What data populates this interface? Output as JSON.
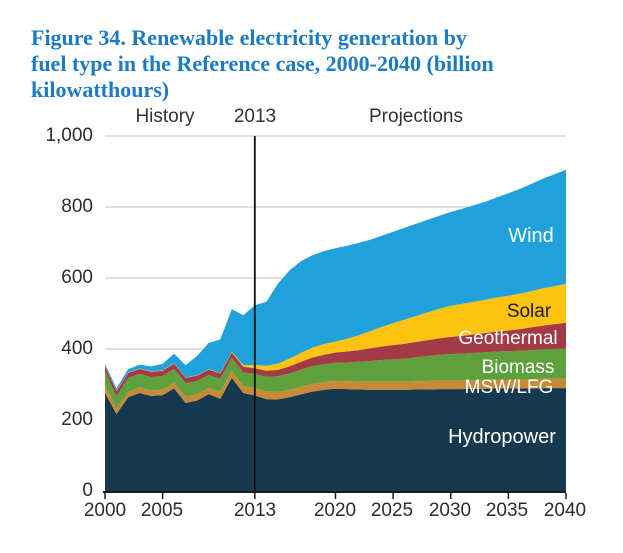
{
  "title": {
    "text": "Figure 34. Renewable electricity generation by fuel type in the Reference case, 2000-2040 (billion kilowatthours)",
    "lines": [
      "Figure 34. Renewable electricity generation by",
      "fuel type in the Reference case, 2000-2040 (billion",
      "kilowatthours)"
    ],
    "color": "#1c7bc2"
  },
  "annotations": {
    "history": "History",
    "divider_year": "2013",
    "projections": "Projections"
  },
  "axes": {
    "y_ticks": [
      "1,000",
      "800",
      "600",
      "400",
      "200",
      "0"
    ],
    "x_ticks": [
      "2000",
      "2005",
      "2013",
      "2020",
      "2025",
      "2030",
      "2035",
      "2040"
    ]
  },
  "colors": {
    "gridline": "#c2c2c2",
    "axis": "#1a1a1a",
    "divider_line": "#111111"
  },
  "chart_data": {
    "type": "area",
    "stacked": true,
    "title": "Figure 34. Renewable electricity generation by fuel type in the Reference case, 2000-2040 (billion kilowatthours)",
    "xlabel": "",
    "ylabel": "billion kilowatthours",
    "ylim": [
      0,
      1000
    ],
    "y_tick_values": [
      0,
      200,
      400,
      600,
      800,
      1000
    ],
    "x_tick_values": [
      2000,
      2005,
      2013,
      2020,
      2025,
      2030,
      2035,
      2040
    ],
    "divider_year": 2013,
    "grid": false,
    "legend_position": "labels-inside-areas",
    "x_years": [
      2000,
      2001,
      2002,
      2003,
      2004,
      2005,
      2006,
      2007,
      2008,
      2009,
      2010,
      2011,
      2012,
      2013,
      2014,
      2015,
      2016,
      2017,
      2018,
      2019,
      2020,
      2021,
      2022,
      2023,
      2024,
      2025,
      2026,
      2027,
      2028,
      2029,
      2030,
      2031,
      2032,
      2033,
      2034,
      2035,
      2036,
      2037,
      2038,
      2039,
      2040
    ],
    "series": [
      {
        "name": "Hydropower",
        "color": "#16394f",
        "values": [
          276,
          217,
          264,
          276,
          268,
          270,
          289,
          248,
          255,
          273,
          260,
          319,
          276,
          269,
          259,
          258,
          264,
          272,
          280,
          285,
          288,
          287,
          286,
          285,
          285,
          285,
          285,
          286,
          286,
          287,
          287,
          287,
          288,
          288,
          289,
          289,
          289,
          289,
          290,
          290,
          290
        ]
      },
      {
        "name": "MSW/LFG",
        "color": "#c98a37",
        "values": [
          23,
          15,
          15,
          16,
          15,
          15,
          16,
          17,
          18,
          18,
          19,
          19,
          20,
          21,
          21,
          21,
          21,
          22,
          22,
          22,
          22,
          22,
          22,
          23,
          23,
          23,
          23,
          23,
          24,
          24,
          24,
          24,
          24,
          25,
          25,
          25,
          25,
          26,
          26,
          26,
          26
        ]
      },
      {
        "name": "Biomass",
        "color": "#5ea03c",
        "values": [
          38,
          35,
          39,
          38,
          38,
          39,
          39,
          39,
          37,
          36,
          37,
          37,
          38,
          40,
          42,
          44,
          46,
          48,
          50,
          50,
          51,
          53,
          56,
          58,
          61,
          63,
          65,
          68,
          70,
          73,
          75,
          76,
          77,
          78,
          79,
          80,
          81,
          82,
          83,
          84,
          85
        ]
      },
      {
        "name": "Geothermal",
        "color": "#a23b46",
        "values": [
          14,
          14,
          14,
          14,
          15,
          15,
          15,
          15,
          15,
          15,
          15,
          15,
          16,
          16,
          17,
          18,
          20,
          22,
          24,
          27,
          29,
          31,
          33,
          36,
          38,
          40,
          42,
          43,
          45,
          46,
          48,
          50,
          52,
          54,
          56,
          58,
          61,
          64,
          67,
          70,
          73
        ]
      },
      {
        "name": "Solar",
        "color": "#fec211",
        "values": [
          1,
          1,
          1,
          1,
          1,
          1,
          1,
          1,
          1,
          1,
          1,
          2,
          4,
          9,
          14,
          18,
          22,
          25,
          28,
          30,
          31,
          36,
          42,
          48,
          55,
          62,
          68,
          73,
          78,
          83,
          88,
          90,
          92,
          94,
          96,
          98,
          100,
          102,
          105,
          107,
          110
        ]
      },
      {
        "name": "Wind",
        "color": "#21a1db",
        "values": [
          6,
          7,
          10,
          11,
          14,
          18,
          27,
          34,
          55,
          74,
          95,
          120,
          141,
          168,
          180,
          225,
          248,
          258,
          260,
          262,
          263,
          262,
          260,
          258,
          257,
          257,
          259,
          260,
          261,
          262,
          264,
          268,
          272,
          276,
          282,
          289,
          295,
          302,
          309,
          315,
          321
        ]
      }
    ]
  }
}
